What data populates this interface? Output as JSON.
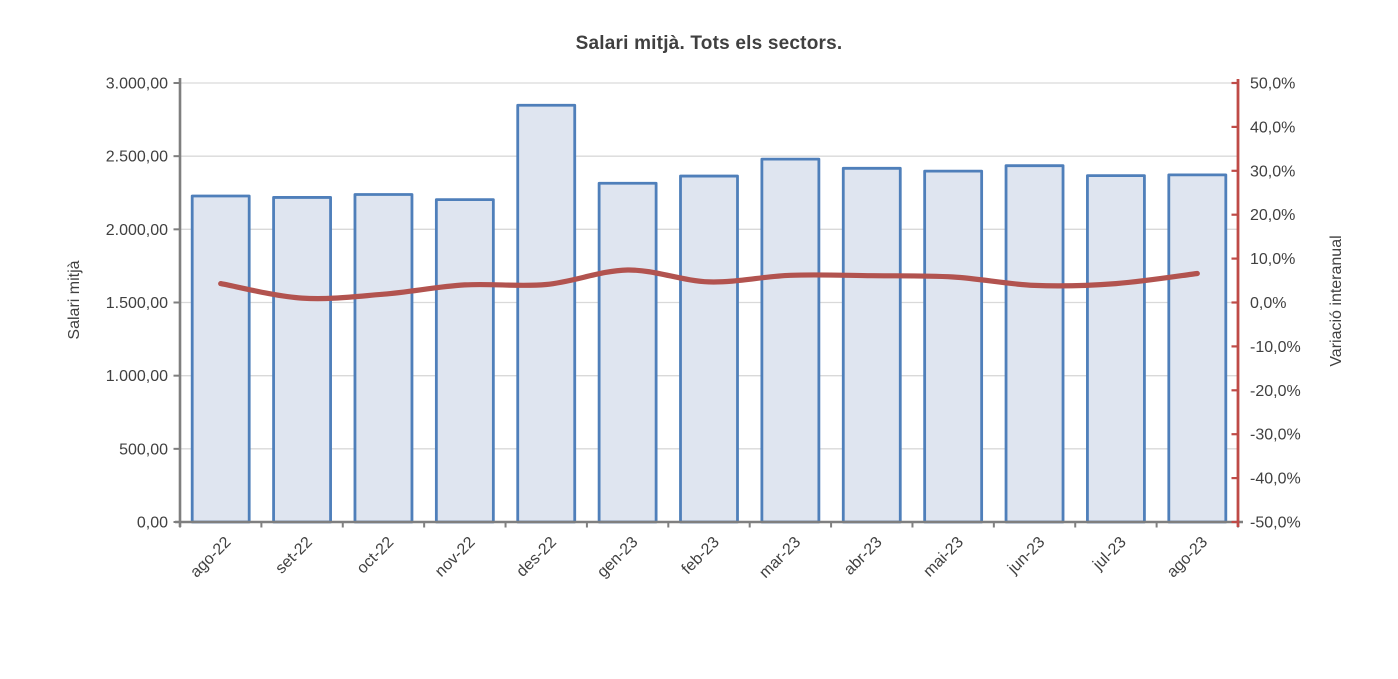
{
  "chart_data": {
    "type": "bar",
    "title": "Salari mitjà. Tots els sectors.",
    "categories": [
      "ago-22",
      "set-22",
      "oct-22",
      "nov-22",
      "des-22",
      "gen-23",
      "feb-23",
      "mar-23",
      "abr-23",
      "mai-23",
      "jun-23",
      "jul-23",
      "ago-23"
    ],
    "series": [
      {
        "name": "Salari mitjà",
        "type": "bar",
        "axis": "left",
        "values": [
          2228,
          2218,
          2238,
          2203,
          2848,
          2315,
          2364,
          2480,
          2417,
          2398,
          2435,
          2367,
          2372
        ]
      },
      {
        "name": "Variació interanual",
        "type": "line",
        "axis": "right",
        "unit": "%",
        "values": [
          4.3,
          1.0,
          1.9,
          4.0,
          4.1,
          7.4,
          4.7,
          6.2,
          6.1,
          5.8,
          3.9,
          4.3,
          6.6
        ]
      }
    ],
    "left_axis": {
      "label": "Salari mitjà",
      "min": 0,
      "max": 3000,
      "step": 500,
      "tick_labels": [
        "0,00",
        "500,00",
        "1.000,00",
        "1.500,00",
        "2.000,00",
        "2.500,00",
        "3.000,00"
      ]
    },
    "right_axis": {
      "label": "Variació interanual",
      "min": -50,
      "max": 50,
      "step": 10,
      "tick_labels": [
        "-50,0%",
        "-40,0%",
        "-30,0%",
        "-20,0%",
        "-10,0%",
        "0,0%",
        "10,0%",
        "20,0%",
        "30,0%",
        "40,0%",
        "50,0%"
      ]
    },
    "grid": true,
    "legend": false
  },
  "colors": {
    "bar_fill": "#dfe5f0",
    "bar_border": "#4f7fba",
    "line": "#b2534f",
    "left_axis": "#7f7f7f",
    "right_axis": "#bf4b47",
    "gridline": "#d9d9d9",
    "text": "#404040",
    "background": "#ffffff"
  }
}
